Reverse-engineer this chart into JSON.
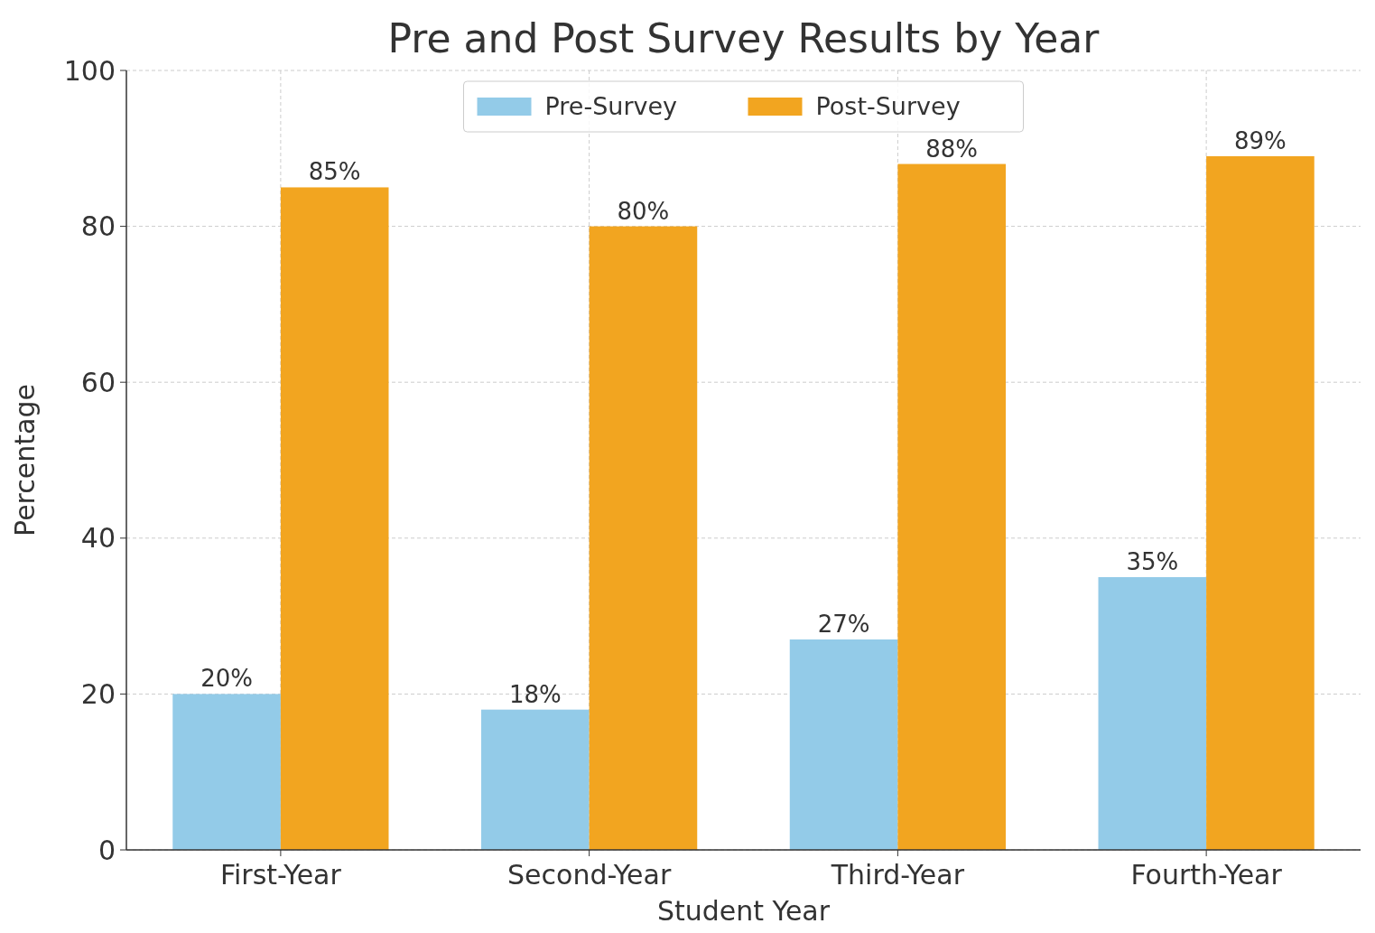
{
  "chart_data": {
    "type": "bar",
    "title": "Pre and Post Survey Results by Year",
    "xlabel": "Student Year",
    "ylabel": "Percentage",
    "categories": [
      "First-Year",
      "Second-Year",
      "Third-Year",
      "Fourth-Year"
    ],
    "series": [
      {
        "name": "Pre-Survey",
        "color": "#93cbe8",
        "values": [
          20,
          18,
          27,
          35
        ],
        "value_labels": [
          "20%",
          "18%",
          "27%",
          "35%"
        ]
      },
      {
        "name": "Post-Survey",
        "color": "#f2a520",
        "values": [
          85,
          80,
          88,
          89
        ],
        "value_labels": [
          "85%",
          "80%",
          "88%",
          "89%"
        ]
      }
    ],
    "ylim": [
      0,
      100
    ],
    "yticks": [
      0,
      20,
      40,
      60,
      80,
      100
    ],
    "grid": true,
    "legend": "top"
  }
}
